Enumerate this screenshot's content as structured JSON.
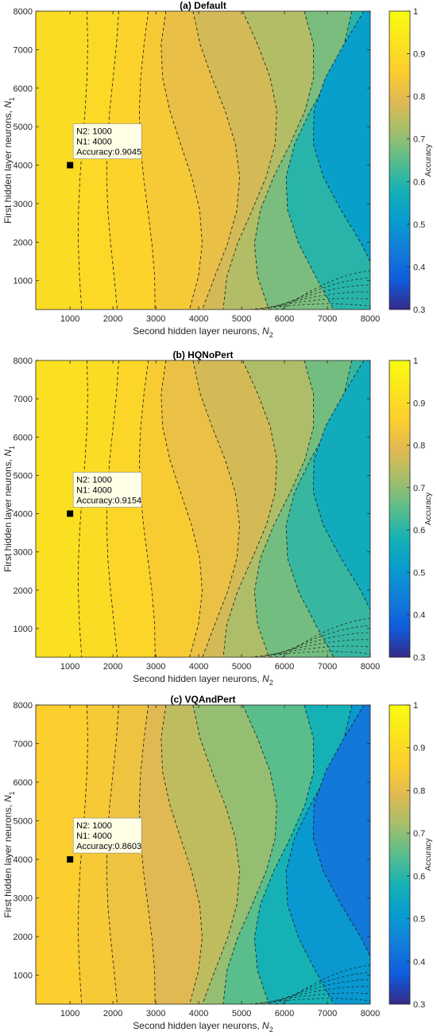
{
  "chart_data": [
    {
      "type": "heatmap",
      "subtype": "filled-contour",
      "title": "(a) Default",
      "xlabel": "Second hidden layer neurons,",
      "xlabel_symbol": "N",
      "xlabel_sub": "2",
      "ylabel": "First hidden layer neurons,",
      "ylabel_symbol": "N",
      "ylabel_sub": "1",
      "xlim": [
        200,
        8000
      ],
      "ylim": [
        250,
        8000
      ],
      "xticks": [
        1000,
        2000,
        3000,
        4000,
        5000,
        6000,
        7000,
        8000
      ],
      "yticks": [
        1000,
        2000,
        3000,
        4000,
        5000,
        6000,
        7000,
        8000
      ],
      "colorbar": {
        "label": "Accuracy",
        "range": [
          0.3,
          1.0
        ],
        "ticks": [
          0.3,
          0.4,
          0.5,
          0.6,
          0.7,
          0.8,
          0.9,
          1
        ]
      },
      "grid": false,
      "datatip": {
        "x": 1000,
        "y": 4000,
        "lines": [
          "N2: 1000",
          "N1: 4000",
          "Accuracy:0.9045"
        ]
      },
      "bands": [
        {
          "x": 200,
          "value": 0.905
        },
        {
          "x": 1300,
          "value": 0.895
        },
        {
          "x": 2000,
          "value": 0.875
        },
        {
          "x": 2800,
          "value": 0.845
        },
        {
          "x": 3600,
          "value": 0.81
        },
        {
          "x": 4400,
          "value": 0.775
        },
        {
          "x": 5200,
          "value": 0.735
        },
        {
          "x": 6000,
          "value": 0.68
        },
        {
          "x": 6800,
          "value": 0.6
        },
        {
          "x": 7500,
          "value": 0.52
        }
      ]
    },
    {
      "type": "heatmap",
      "subtype": "filled-contour",
      "title": "(b) HQNoPert",
      "xlabel": "Second hidden layer neurons,",
      "xlabel_symbol": "N",
      "xlabel_sub": "2",
      "ylabel": "First hidden layer neurons,",
      "ylabel_symbol": "N",
      "ylabel_sub": "1",
      "xlim": [
        200,
        8000
      ],
      "ylim": [
        250,
        8000
      ],
      "xticks": [
        1000,
        2000,
        3000,
        4000,
        5000,
        6000,
        7000,
        8000
      ],
      "yticks": [
        1000,
        2000,
        3000,
        4000,
        5000,
        6000,
        7000,
        8000
      ],
      "colorbar": {
        "label": "Accuracy",
        "range": [
          0.3,
          1.0
        ],
        "ticks": [
          0.3,
          0.4,
          0.5,
          0.6,
          0.7,
          0.8,
          0.9,
          1
        ]
      },
      "grid": false,
      "datatip": {
        "x": 1000,
        "y": 4000,
        "lines": [
          "N2: 1000",
          "N1: 4000",
          "Accuracy:0.9154"
        ]
      },
      "bands": [
        {
          "x": 200,
          "value": 0.915
        },
        {
          "x": 1300,
          "value": 0.905
        },
        {
          "x": 2000,
          "value": 0.885
        },
        {
          "x": 2800,
          "value": 0.85
        },
        {
          "x": 3600,
          "value": 0.815
        },
        {
          "x": 4400,
          "value": 0.775
        },
        {
          "x": 5200,
          "value": 0.73
        },
        {
          "x": 6000,
          "value": 0.675
        },
        {
          "x": 6800,
          "value": 0.615
        },
        {
          "x": 7500,
          "value": 0.56
        }
      ]
    },
    {
      "type": "heatmap",
      "subtype": "filled-contour",
      "title": "(c) VQAndPert",
      "xlabel": "Second hidden layer neurons,",
      "xlabel_symbol": "N",
      "xlabel_sub": "2",
      "ylabel": "First hidden layer neurons,",
      "ylabel_symbol": "N",
      "ylabel_sub": "1",
      "xlim": [
        200,
        8000
      ],
      "ylim": [
        250,
        8000
      ],
      "xticks": [
        1000,
        2000,
        3000,
        4000,
        5000,
        6000,
        7000,
        8000
      ],
      "yticks": [
        1000,
        2000,
        3000,
        4000,
        5000,
        6000,
        7000,
        8000
      ],
      "colorbar": {
        "label": "Accuracy",
        "range": [
          0.3,
          1.0
        ],
        "ticks": [
          0.3,
          0.4,
          0.5,
          0.6,
          0.7,
          0.8,
          0.9,
          1
        ]
      },
      "grid": false,
      "datatip": {
        "x": 1000,
        "y": 4000,
        "lines": [
          "N2: 1000",
          "N1: 4000",
          "Accuracy:0.8603"
        ]
      },
      "bands": [
        {
          "x": 200,
          "value": 0.86
        },
        {
          "x": 1300,
          "value": 0.845
        },
        {
          "x": 2000,
          "value": 0.825
        },
        {
          "x": 2800,
          "value": 0.79
        },
        {
          "x": 3600,
          "value": 0.75
        },
        {
          "x": 4400,
          "value": 0.705
        },
        {
          "x": 5200,
          "value": 0.65
        },
        {
          "x": 6000,
          "value": 0.58
        },
        {
          "x": 6800,
          "value": 0.5
        },
        {
          "x": 7500,
          "value": 0.43
        }
      ]
    }
  ]
}
